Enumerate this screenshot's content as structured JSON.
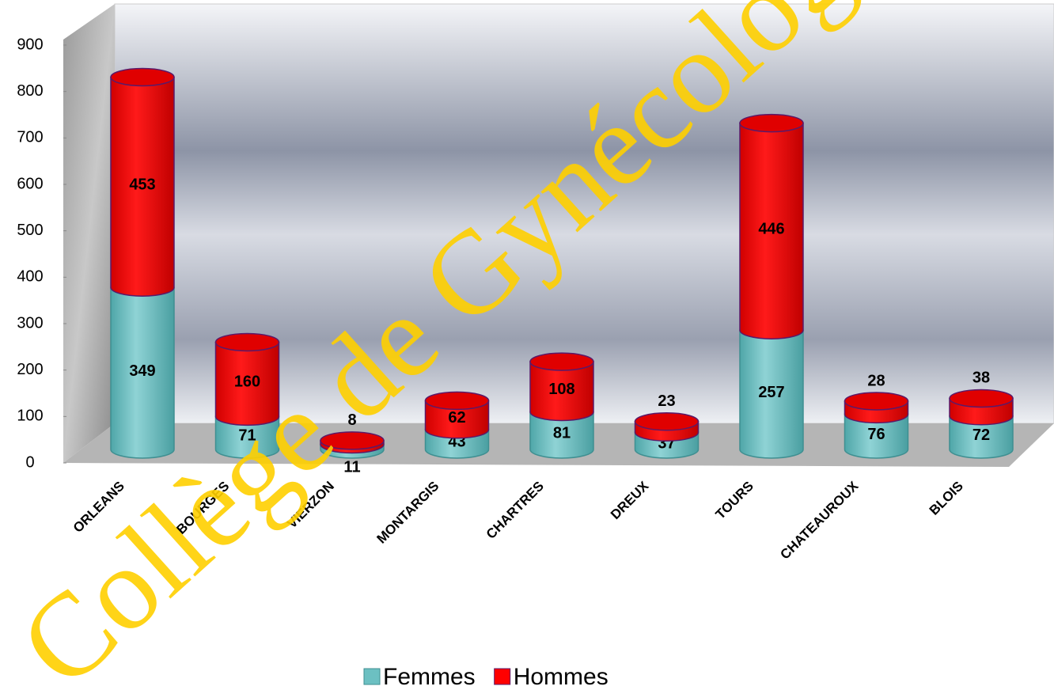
{
  "chart_data": {
    "type": "bar3d_stacked_cylinder",
    "categories": [
      "ORLEANS",
      "BOURGES",
      "VIERZON",
      "MONTARGIS",
      "CHARTRES",
      "DREUX",
      "TOURS",
      "CHATEAUROUX",
      "BLOIS"
    ],
    "series": [
      {
        "name": "Femmes",
        "color": "#6cc0c2",
        "values": [
          349,
          71,
          11,
          43,
          81,
          37,
          257,
          76,
          72
        ]
      },
      {
        "name": "Hommes",
        "color": "#ff0000",
        "values": [
          453,
          160,
          8,
          62,
          108,
          23,
          446,
          28,
          38
        ]
      }
    ],
    "ylim": [
      0,
      900
    ],
    "yticks": [
      0,
      100,
      200,
      300,
      400,
      500,
      600,
      700,
      800,
      900
    ],
    "legend": "bottom",
    "watermark": "Collège de Gynécologie"
  }
}
